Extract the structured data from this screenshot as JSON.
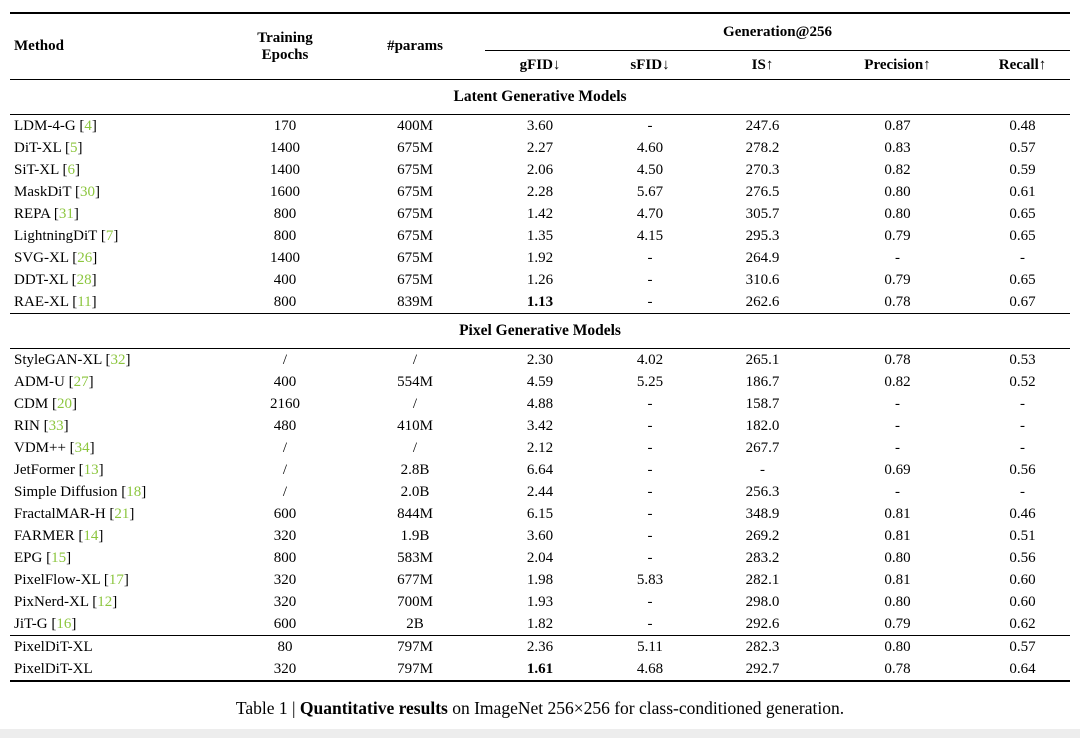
{
  "header": {
    "method": "Method",
    "epochs_line1": "Training",
    "epochs_line2": "Epochs",
    "params": "#params",
    "group": "Generation@256",
    "metrics": [
      "gFID↓",
      "sFID↓",
      "IS↑",
      "Precision↑",
      "Recall↑"
    ]
  },
  "sections": [
    {
      "title": "Latent Generative Models",
      "rows": [
        {
          "method": "LDM-4-G",
          "cite": "4",
          "cells": [
            "170",
            "400M",
            "3.60",
            "-",
            "247.6",
            "0.87",
            "0.48"
          ],
          "bold": []
        },
        {
          "method": "DiT-XL",
          "cite": "5",
          "cells": [
            "1400",
            "675M",
            "2.27",
            "4.60",
            "278.2",
            "0.83",
            "0.57"
          ],
          "bold": []
        },
        {
          "method": "SiT-XL",
          "cite": "6",
          "cells": [
            "1400",
            "675M",
            "2.06",
            "4.50",
            "270.3",
            "0.82",
            "0.59"
          ],
          "bold": []
        },
        {
          "method": "MaskDiT",
          "cite": "30",
          "cells": [
            "1600",
            "675M",
            "2.28",
            "5.67",
            "276.5",
            "0.80",
            "0.61"
          ],
          "bold": []
        },
        {
          "method": "REPA",
          "cite": "31",
          "cells": [
            "800",
            "675M",
            "1.42",
            "4.70",
            "305.7",
            "0.80",
            "0.65"
          ],
          "bold": []
        },
        {
          "method": "LightningDiT",
          "cite": "7",
          "cells": [
            "800",
            "675M",
            "1.35",
            "4.15",
            "295.3",
            "0.79",
            "0.65"
          ],
          "bold": []
        },
        {
          "method": "SVG-XL",
          "cite": "26",
          "cells": [
            "1400",
            "675M",
            "1.92",
            "-",
            "264.9",
            "-",
            "-"
          ],
          "bold": []
        },
        {
          "method": "DDT-XL",
          "cite": "28",
          "cells": [
            "400",
            "675M",
            "1.26",
            "-",
            "310.6",
            "0.79",
            "0.65"
          ],
          "bold": []
        },
        {
          "method": "RAE-XL",
          "cite": "11",
          "cells": [
            "800",
            "839M",
            "1.13",
            "-",
            "262.6",
            "0.78",
            "0.67"
          ],
          "bold": [
            2
          ]
        }
      ]
    },
    {
      "title": "Pixel Generative Models",
      "rows": [
        {
          "method": "StyleGAN-XL",
          "cite": "32",
          "cells": [
            "/",
            "/",
            "2.30",
            "4.02",
            "265.1",
            "0.78",
            "0.53"
          ],
          "bold": []
        },
        {
          "method": "ADM-U",
          "cite": "27",
          "cells": [
            "400",
            "554M",
            "4.59",
            "5.25",
            "186.7",
            "0.82",
            "0.52"
          ],
          "bold": []
        },
        {
          "method": "CDM",
          "cite": "20",
          "cells": [
            "2160",
            "/",
            "4.88",
            "-",
            "158.7",
            "-",
            "-"
          ],
          "bold": []
        },
        {
          "method": "RIN",
          "cite": "33",
          "cells": [
            "480",
            "410M",
            "3.42",
            "-",
            "182.0",
            "-",
            "-"
          ],
          "bold": []
        },
        {
          "method": "VDM++",
          "cite": "34",
          "cells": [
            "/",
            "/",
            "2.12",
            "-",
            "267.7",
            "-",
            "-"
          ],
          "bold": []
        },
        {
          "method": "JetFormer",
          "cite": "13",
          "cells": [
            "/",
            "2.8B",
            "6.64",
            "-",
            "-",
            "0.69",
            "0.56"
          ],
          "bold": []
        },
        {
          "method": "Simple Diffusion",
          "cite": "18",
          "cells": [
            "/",
            "2.0B",
            "2.44",
            "-",
            "256.3",
            "-",
            "-"
          ],
          "bold": []
        },
        {
          "method": "FractalMAR-H",
          "cite": "21",
          "cells": [
            "600",
            "844M",
            "6.15",
            "-",
            "348.9",
            "0.81",
            "0.46"
          ],
          "bold": []
        },
        {
          "method": "FARMER",
          "cite": "14",
          "cells": [
            "320",
            "1.9B",
            "3.60",
            "-",
            "269.2",
            "0.81",
            "0.51"
          ],
          "bold": []
        },
        {
          "method": "EPG",
          "cite": "15",
          "cells": [
            "800",
            "583M",
            "2.04",
            "-",
            "283.2",
            "0.80",
            "0.56"
          ],
          "bold": []
        },
        {
          "method": "PixelFlow-XL",
          "cite": "17",
          "cells": [
            "320",
            "677M",
            "1.98",
            "5.83",
            "282.1",
            "0.81",
            "0.60"
          ],
          "bold": []
        },
        {
          "method": "PixNerd-XL",
          "cite": "12",
          "cells": [
            "320",
            "700M",
            "1.93",
            "-",
            "298.0",
            "0.80",
            "0.60"
          ],
          "bold": []
        },
        {
          "method": "JiT-G",
          "cite": "16",
          "cells": [
            "600",
            "2B",
            "1.82",
            "-",
            "292.6",
            "0.79",
            "0.62"
          ],
          "bold": []
        }
      ]
    }
  ],
  "ours_rows": [
    {
      "method": "PixelDiT-XL",
      "cite": "",
      "cells": [
        "80",
        "797M",
        "2.36",
        "5.11",
        "282.3",
        "0.80",
        "0.57"
      ],
      "bold": []
    },
    {
      "method": "PixelDiT-XL",
      "cite": "",
      "cells": [
        "320",
        "797M",
        "1.61",
        "4.68",
        "292.7",
        "0.78",
        "0.64"
      ],
      "bold": [
        2
      ]
    }
  ],
  "caption": {
    "prefix": "Table 1 | ",
    "bold": "Quantitative results",
    "suffix": " on ImageNet 256×256 for class-conditioned generation."
  },
  "colors": {
    "citation_green": "#8cc63e"
  }
}
